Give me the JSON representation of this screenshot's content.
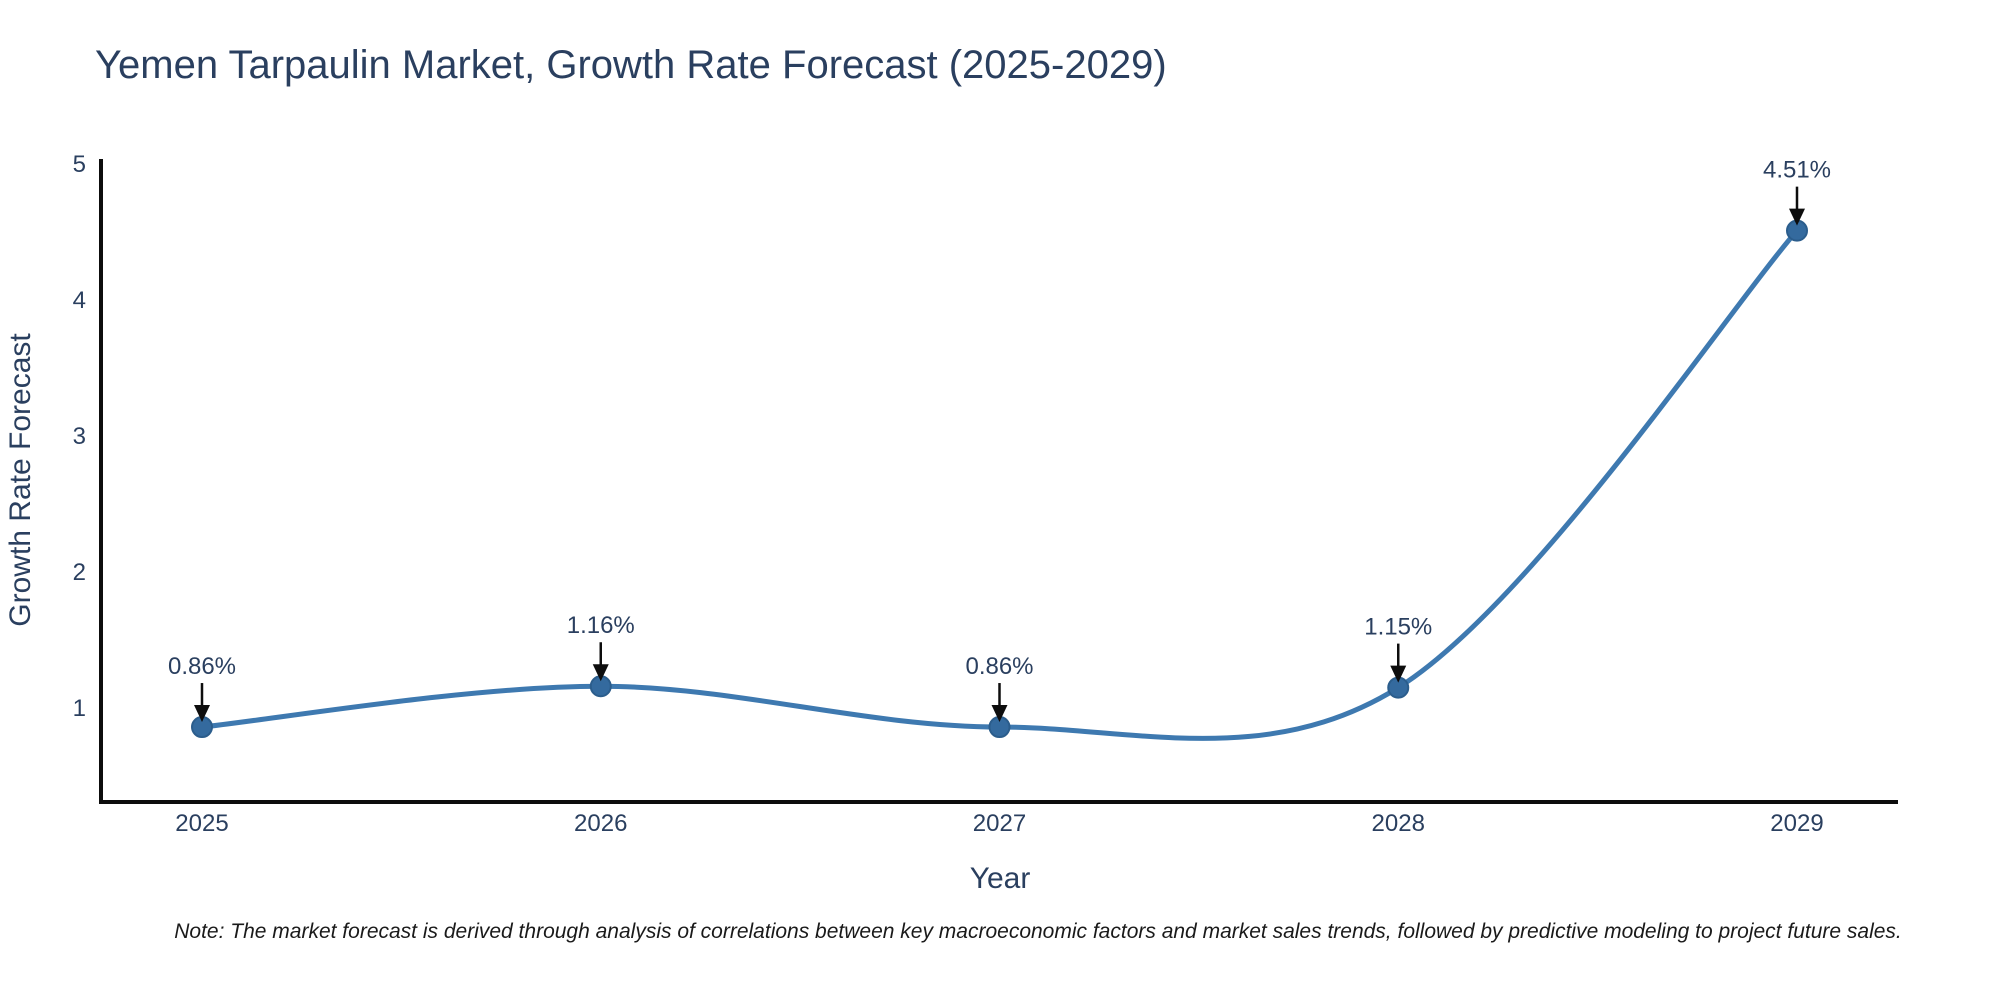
{
  "note": "Note: The market forecast is derived through analysis of correlations between key macroeconomic factors and market sales trends, followed by predictive modeling to project future sales.",
  "chart_data": {
    "type": "line",
    "line_shape": "spline",
    "title": "Yemen Tarpaulin Market, Growth Rate Forecast (2025-2029)",
    "xlabel": "Year",
    "ylabel": "Growth Rate Forecast",
    "categories": [
      "2025",
      "2026",
      "2027",
      "2028",
      "2029"
    ],
    "values": [
      0.86,
      1.16,
      0.86,
      1.15,
      4.51
    ],
    "point_labels": [
      "0.86%",
      "1.16%",
      "0.86%",
      "1.15%",
      "4.51%"
    ],
    "y_ticks": [
      1,
      2,
      3,
      4,
      5
    ],
    "ylim": [
      0.31,
      5.04
    ],
    "grid": false,
    "legend": "none",
    "marker_size": 10,
    "colors": {
      "line": "#3e79b0",
      "marker": "#346a9e",
      "marker_edge": "#2b5d8c",
      "axis": "#0d0d0d",
      "arrow": "#0d0d0d",
      "text": "#2a3f5f",
      "note_text": "#1a1a1a",
      "background": "#ffffff"
    }
  }
}
